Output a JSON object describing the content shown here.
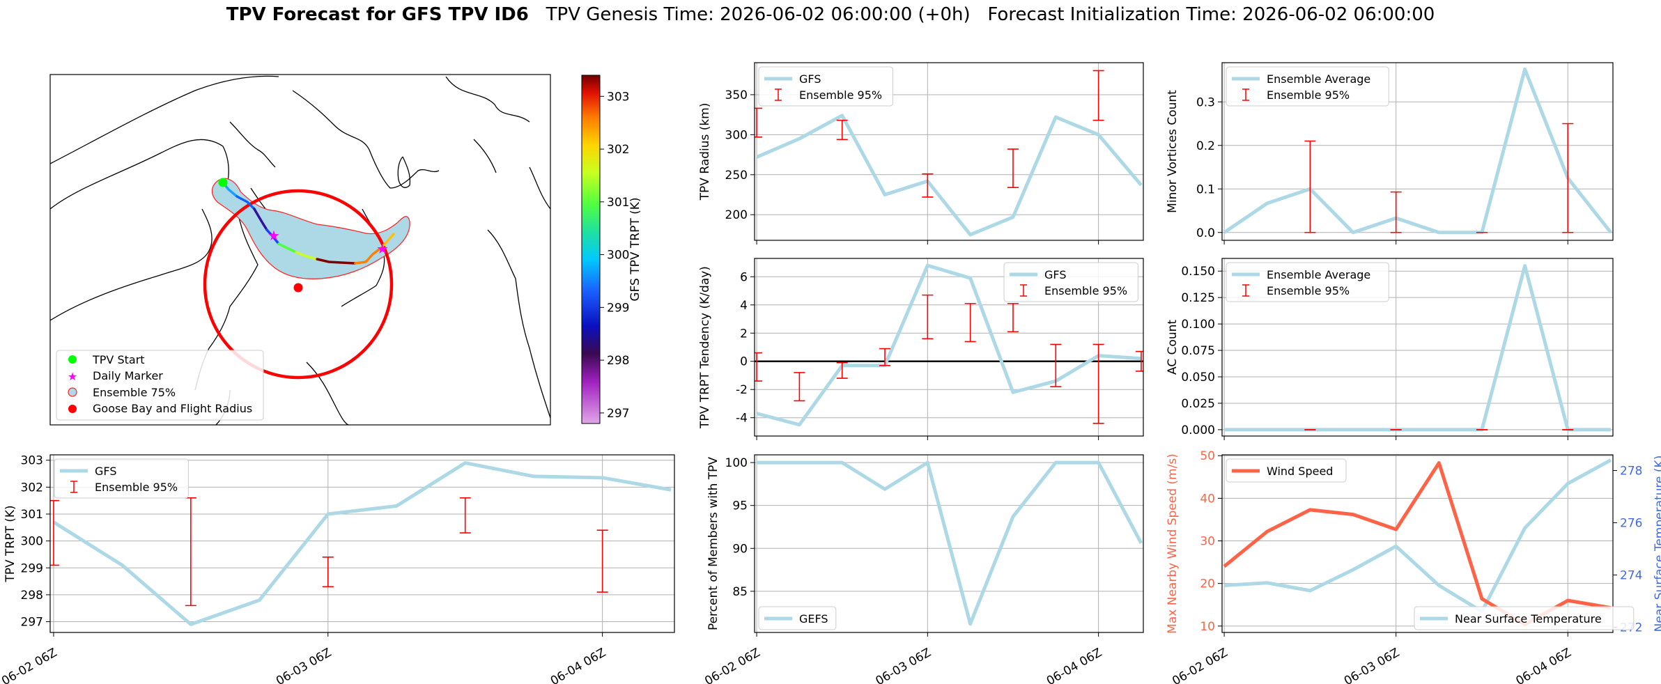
{
  "header": {
    "title_bold": "TPV Forecast for GFS TPV ID6",
    "title_rest": "TPV Genesis Time: 2026-06-02 06:00:00 (+0h)   Forecast Initialization Time: 2026-06-02 06:00:00"
  },
  "colors": {
    "gfs": "#add8e6",
    "ensemble": "#ff0000",
    "wind": "#ff6347",
    "temp_axis": "#4169e1",
    "zero_line": "#000000"
  },
  "map_panel": {
    "colorbar_label": "GFS TPV TRPT (K)",
    "colorbar_ticks": [
      297,
      298,
      299,
      300,
      301,
      302,
      303
    ],
    "colorbar_range": [
      296.8,
      303.4
    ],
    "colormap": "gist_ncar-like",
    "legend": [
      "TPV Start",
      "Daily Marker",
      "Ensemble 75%",
      "Goose Bay and Flight Radius"
    ]
  },
  "chart_data": [
    {
      "id": "radius",
      "type": "line",
      "x": [
        "06-02 06Z",
        "06-02 12Z",
        "06-02 18Z",
        "06-03 00Z",
        "06-03 06Z",
        "06-03 12Z",
        "06-03 18Z",
        "06-04 00Z",
        "06-04 06Z",
        "06-04 12Z"
      ],
      "series": [
        {
          "name": "GFS",
          "values": [
            272,
            295,
            324,
            225,
            242,
            175,
            197,
            322,
            300,
            237
          ]
        }
      ],
      "errorbars": {
        "name": "Ensemble 95%",
        "x_index": [
          0,
          2,
          4,
          6,
          8
        ],
        "low": [
          297,
          294,
          222,
          234,
          318
        ],
        "high": [
          333,
          318,
          251,
          282,
          380
        ]
      },
      "ylabel": "TPV Radius (km)",
      "ylim": [
        168,
        390
      ],
      "yticks": [
        200,
        250,
        300,
        350
      ],
      "xticks": [],
      "legend": "top-left",
      "grid": true
    },
    {
      "id": "minor",
      "type": "line",
      "x": [
        "06-02 06Z",
        "06-02 12Z",
        "06-02 18Z",
        "06-03 00Z",
        "06-03 06Z",
        "06-03 12Z",
        "06-03 18Z",
        "06-04 00Z",
        "06-04 06Z",
        "06-04 12Z"
      ],
      "series": [
        {
          "name": "Ensemble Average",
          "values": [
            0.0,
            0.067,
            0.1,
            0.0,
            0.033,
            0.0,
            0.0,
            0.375,
            0.125,
            0.0
          ]
        }
      ],
      "errorbars": {
        "name": "Ensemble 95%",
        "x_index": [
          2,
          4,
          6,
          8
        ],
        "low": [
          0,
          0,
          0,
          0
        ],
        "high": [
          0.21,
          0.093,
          0.0,
          0.25
        ]
      },
      "ylabel": "Minor Vortices Count",
      "ylim": [
        -0.018,
        0.39
      ],
      "yticks": [
        0.0,
        0.1,
        0.2,
        0.3
      ],
      "xticks": [],
      "legend": "top-left",
      "grid": true
    },
    {
      "id": "tendency",
      "type": "line",
      "x": [
        "06-02 06Z",
        "06-02 12Z",
        "06-02 18Z",
        "06-03 00Z",
        "06-03 06Z",
        "06-03 12Z",
        "06-03 18Z",
        "06-04 00Z",
        "06-04 06Z",
        "06-04 12Z"
      ],
      "series": [
        {
          "name": "GFS",
          "values": [
            -3.7,
            -4.5,
            -0.3,
            -0.3,
            6.8,
            5.9,
            -2.2,
            -1.4,
            0.4,
            0.2
          ]
        }
      ],
      "errorbars": {
        "name": "Ensemble 95%",
        "x_index": [
          0,
          1,
          2,
          3,
          4,
          5,
          6,
          7,
          8,
          9
        ],
        "low": [
          -1.4,
          -2.8,
          -1.2,
          -0.3,
          1.6,
          1.4,
          2.1,
          -1.8,
          -4.4,
          -0.7
        ],
        "high": [
          0.6,
          -0.8,
          -0.1,
          0.9,
          4.7,
          4.1,
          4.1,
          1.2,
          1.2,
          0.7
        ]
      },
      "zero_line": true,
      "ylabel": "TPV TRPT Tendency (K/day)",
      "ylim": [
        -5.3,
        7.3
      ],
      "yticks": [
        -4,
        -2,
        0,
        2,
        4,
        6
      ],
      "xticks": [],
      "legend": "top-right",
      "grid": true
    },
    {
      "id": "ac",
      "type": "line",
      "x": [
        "06-02 06Z",
        "06-02 12Z",
        "06-02 18Z",
        "06-03 00Z",
        "06-03 06Z",
        "06-03 12Z",
        "06-03 18Z",
        "06-04 00Z",
        "06-04 06Z",
        "06-04 12Z"
      ],
      "series": [
        {
          "name": "Ensemble Average",
          "values": [
            0,
            0,
            0,
            0,
            0,
            0,
            0,
            0.155,
            0,
            0
          ]
        }
      ],
      "errorbars": {
        "name": "Ensemble 95%",
        "x_index": [
          2,
          4,
          6,
          8
        ],
        "low": [
          0,
          0,
          0,
          0
        ],
        "high": [
          0,
          0,
          0,
          0
        ]
      },
      "ylabel": "AC Count",
      "ylim": [
        -0.006,
        0.162
      ],
      "yticks": [
        0.0,
        0.025,
        0.05,
        0.075,
        0.1,
        0.125,
        0.15
      ],
      "xticks": [],
      "legend": "top-left",
      "grid": true
    },
    {
      "id": "trpt",
      "type": "line",
      "x": [
        "06-02 06Z",
        "06-02 12Z",
        "06-02 18Z",
        "06-03 00Z",
        "06-03 06Z",
        "06-03 12Z",
        "06-03 18Z",
        "06-04 00Z",
        "06-04 06Z",
        "06-04 12Z"
      ],
      "series": [
        {
          "name": "GFS",
          "values": [
            300.7,
            299.1,
            296.9,
            297.8,
            301.0,
            301.3,
            302.9,
            302.4,
            302.35,
            301.9
          ]
        }
      ],
      "errorbars": {
        "name": "Ensemble 95%",
        "x_index": [
          0,
          2,
          4,
          6,
          8
        ],
        "low": [
          299.1,
          297.6,
          298.3,
          300.3,
          298.1
        ],
        "high": [
          301.5,
          301.6,
          299.4,
          301.6,
          300.4
        ]
      },
      "ylabel": "TPV TRPT (K)",
      "ylim": [
        296.6,
        303.2
      ],
      "yticks": [
        297,
        298,
        299,
        300,
        301,
        302,
        303
      ],
      "xticks": [
        "06-02 06Z",
        "06-03 06Z",
        "06-04 06Z"
      ],
      "legend": "top-left",
      "grid": true
    },
    {
      "id": "percent",
      "type": "line",
      "x": [
        "06-02 06Z",
        "06-02 12Z",
        "06-02 18Z",
        "06-03 00Z",
        "06-03 06Z",
        "06-03 12Z",
        "06-03 18Z",
        "06-04 00Z",
        "06-04 06Z",
        "06-04 12Z"
      ],
      "series": [
        {
          "name": "GEFS",
          "values": [
            100,
            100,
            100,
            96.9,
            100,
            81.2,
            93.7,
            100,
            100,
            90.6
          ]
        }
      ],
      "ylabel": "Percent of Members with TPV",
      "ylim": [
        80.2,
        100.9
      ],
      "yticks": [
        85,
        90,
        95,
        100
      ],
      "xticks": [
        "06-02 06Z",
        "06-03 06Z",
        "06-04 06Z"
      ],
      "legend": "bottom-left",
      "grid": true
    },
    {
      "id": "wind",
      "type": "line",
      "x": [
        "06-02 06Z",
        "06-02 12Z",
        "06-02 18Z",
        "06-03 00Z",
        "06-03 06Z",
        "06-03 12Z",
        "06-03 18Z",
        "06-04 00Z",
        "06-04 06Z",
        "06-04 12Z"
      ],
      "series": [
        {
          "name": "Wind Speed",
          "axis": "left",
          "values": [
            24,
            32.2,
            37.3,
            36.2,
            32.7,
            48.3,
            16.4,
            10.4,
            16,
            14.3
          ]
        },
        {
          "name": "Near Surface Temperature",
          "axis": "right",
          "values": [
            273.6,
            273.7,
            273.4,
            274.2,
            275.1,
            273.6,
            272.6,
            275.8,
            277.5,
            278.4
          ]
        }
      ],
      "ylabel": "Max Nearby Wind Speed (m/s)",
      "ylabel_right": "Near Surface Temperature (K)",
      "ylim": [
        8.5,
        50.2
      ],
      "yticks": [
        10,
        20,
        30,
        40,
        50
      ],
      "ylim_right": [
        271.8,
        278.6
      ],
      "yticks_right": [
        272,
        274,
        276,
        278
      ],
      "xticks": [
        "06-02 06Z",
        "06-03 06Z",
        "06-04 06Z"
      ],
      "legend": "top-left / bottom-right",
      "grid": true
    }
  ]
}
